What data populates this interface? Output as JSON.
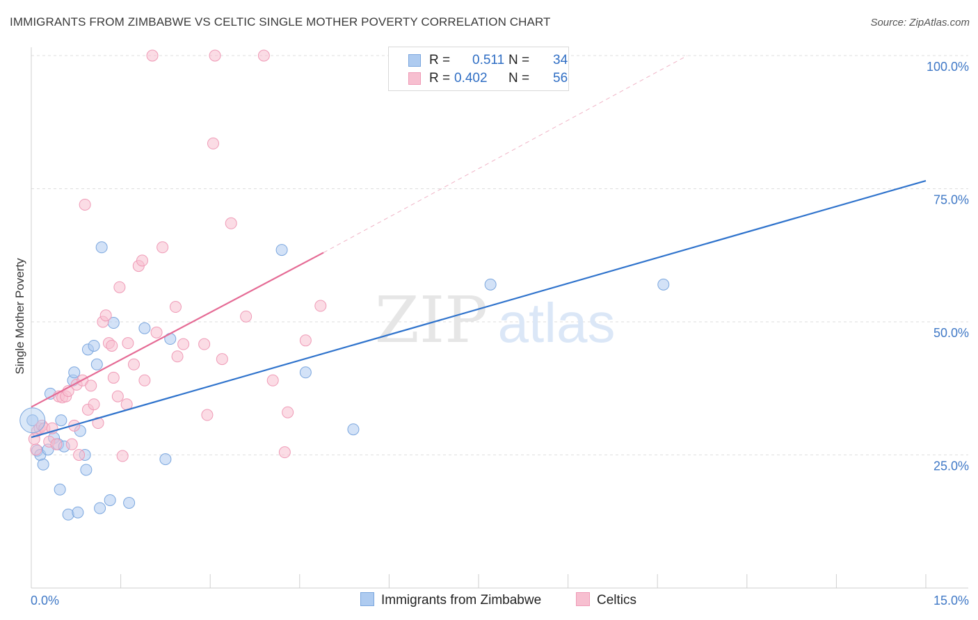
{
  "title": "IMMIGRANTS FROM ZIMBABWE VS CELTIC SINGLE MOTHER POVERTY CORRELATION CHART",
  "source": "Source: ZipAtlas.com",
  "watermark": {
    "zip": "ZIP",
    "atlas": "atlas"
  },
  "legend": {
    "series1": {
      "r_label": "R =",
      "r_value": "0.511",
      "n_label": "N =",
      "n_value": "34"
    },
    "series2": {
      "r_label": "R =",
      "r_value": "0.402",
      "n_label": "N =",
      "n_value": "56"
    }
  },
  "bottom_legend": {
    "series1": "Immigrants from Zimbabwe",
    "series2": "Celtics"
  },
  "colors": {
    "blue_fill": "#aecbf0",
    "blue_stroke": "#7aa6de",
    "blue_line": "#2f73cc",
    "pink_fill": "#f7bfd0",
    "pink_stroke": "#ef9ab6",
    "pink_line": "#e56b95",
    "tick": "#3f78c6",
    "grid": "#dedede"
  },
  "chart_data": {
    "type": "scatter",
    "title": "IMMIGRANTS FROM ZIMBABWE VS CELTIC SINGLE MOTHER POVERTY CORRELATION CHART",
    "xlabel": "",
    "ylabel": "Single Mother Poverty",
    "xlim": [
      0,
      15
    ],
    "ylim": [
      0,
      100
    ],
    "x_tick_labels": [
      "0.0%",
      "15.0%"
    ],
    "y_tick_labels": [
      "25.0%",
      "50.0%",
      "75.0%",
      "100.0%"
    ],
    "y_ticks": [
      25,
      50,
      75,
      100
    ],
    "grid": true,
    "series": [
      {
        "name": "Immigrants from Zimbabwe",
        "color": "blue",
        "points": [
          [
            0.02,
            31.5
          ],
          [
            0.1,
            25.8
          ],
          [
            0.15,
            25.0
          ],
          [
            0.2,
            23.2
          ],
          [
            0.28,
            26.0
          ],
          [
            0.32,
            36.5
          ],
          [
            0.38,
            28.2
          ],
          [
            0.45,
            27.0
          ],
          [
            0.48,
            18.5
          ],
          [
            0.5,
            31.5
          ],
          [
            0.55,
            26.6
          ],
          [
            0.62,
            13.8
          ],
          [
            0.7,
            39.0
          ],
          [
            0.72,
            40.5
          ],
          [
            0.78,
            14.2
          ],
          [
            0.82,
            29.5
          ],
          [
            0.9,
            25.0
          ],
          [
            0.92,
            22.2
          ],
          [
            0.95,
            44.8
          ],
          [
            1.05,
            45.5
          ],
          [
            1.1,
            42.0
          ],
          [
            1.15,
            15.0
          ],
          [
            1.18,
            64.0
          ],
          [
            1.32,
            16.5
          ],
          [
            1.38,
            49.8
          ],
          [
            1.64,
            16.0
          ],
          [
            1.9,
            48.8
          ],
          [
            2.25,
            24.2
          ],
          [
            2.33,
            46.8
          ],
          [
            4.2,
            63.5
          ],
          [
            4.6,
            40.5
          ],
          [
            5.4,
            29.8
          ],
          [
            7.7,
            57.0
          ],
          [
            10.6,
            57.0
          ]
        ],
        "trend": {
          "x1": 0,
          "y1": 28.3,
          "x2": 15,
          "y2": 76.5
        }
      },
      {
        "name": "Celtics",
        "color": "pink",
        "points": [
          [
            0.05,
            28.0
          ],
          [
            0.08,
            26.0
          ],
          [
            0.1,
            29.5
          ],
          [
            0.14,
            30.0
          ],
          [
            0.18,
            30.5
          ],
          [
            0.22,
            30.0
          ],
          [
            0.3,
            27.5
          ],
          [
            0.35,
            30.0
          ],
          [
            0.42,
            27.0
          ],
          [
            0.46,
            36.0
          ],
          [
            0.52,
            35.8
          ],
          [
            0.58,
            36.0
          ],
          [
            0.62,
            37.0
          ],
          [
            0.68,
            27.0
          ],
          [
            0.72,
            30.5
          ],
          [
            0.76,
            38.2
          ],
          [
            0.8,
            25.0
          ],
          [
            0.86,
            39.0
          ],
          [
            0.9,
            72.0
          ],
          [
            0.95,
            33.5
          ],
          [
            1.0,
            38.0
          ],
          [
            1.05,
            34.5
          ],
          [
            1.12,
            31.0
          ],
          [
            1.2,
            50.0
          ],
          [
            1.25,
            51.2
          ],
          [
            1.3,
            46.0
          ],
          [
            1.35,
            45.5
          ],
          [
            1.38,
            39.5
          ],
          [
            1.45,
            36.0
          ],
          [
            1.48,
            56.5
          ],
          [
            1.53,
            24.8
          ],
          [
            1.6,
            34.5
          ],
          [
            1.62,
            46.0
          ],
          [
            1.72,
            42.0
          ],
          [
            1.8,
            60.5
          ],
          [
            1.86,
            61.5
          ],
          [
            1.9,
            39.0
          ],
          [
            2.03,
            100.0
          ],
          [
            2.1,
            48.0
          ],
          [
            2.2,
            64.0
          ],
          [
            2.42,
            52.8
          ],
          [
            2.45,
            43.5
          ],
          [
            2.55,
            45.8
          ],
          [
            2.9,
            45.8
          ],
          [
            2.95,
            32.5
          ],
          [
            3.05,
            83.5
          ],
          [
            3.08,
            100.0
          ],
          [
            3.2,
            43.0
          ],
          [
            3.35,
            68.5
          ],
          [
            3.6,
            51.0
          ],
          [
            3.9,
            100.0
          ],
          [
            4.05,
            39.0
          ],
          [
            4.25,
            25.5
          ],
          [
            4.3,
            33.0
          ],
          [
            4.6,
            46.5
          ],
          [
            4.85,
            53.0
          ]
        ],
        "trend": {
          "x1": 0,
          "y1": 34.0,
          "x2": 4.9,
          "y2": 63.0
        },
        "trend_extension": {
          "x1": 4.9,
          "y1": 63.0,
          "x2": 11.0,
          "y2": 100.0
        }
      }
    ]
  }
}
